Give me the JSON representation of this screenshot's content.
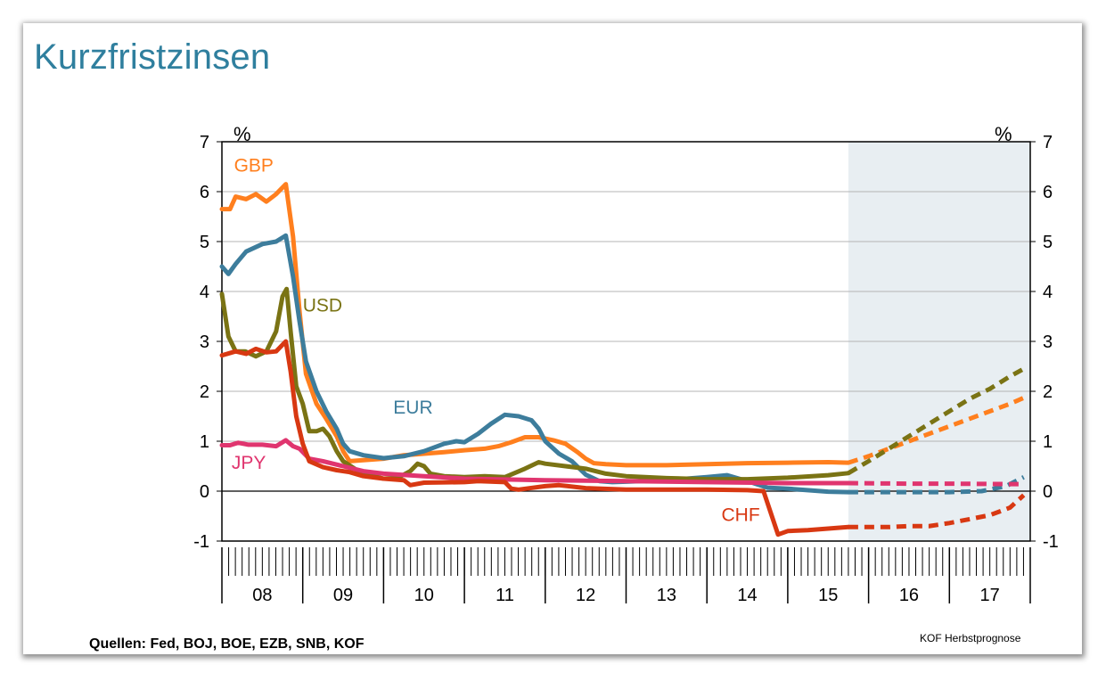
{
  "title": "Kurzfristzinsen",
  "sources": "Quellen: Fed, BOJ, BOE, EZB, SNB, KOF",
  "credit": "KOF Herbstprognose",
  "chart_data": {
    "type": "line",
    "title": "Kurzfristzinsen",
    "ylabel_left": "%",
    "ylabel_right": "%",
    "ylim": [
      -1,
      7
    ],
    "yticks": [
      -1,
      0,
      1,
      2,
      3,
      4,
      5,
      6,
      7
    ],
    "xlim": [
      2008,
      2018
    ],
    "x_tick_labels": [
      "08",
      "09",
      "10",
      "11",
      "12",
      "13",
      "14",
      "15",
      "16",
      "17"
    ],
    "grid": true,
    "forecast_start": 2015.75,
    "forecast_shading": "#e8eef2",
    "series": [
      {
        "name": "GBP",
        "color": "#ff7f1e",
        "label_pos": [
          2008.15,
          6.4
        ],
        "actual": [
          [
            2008.0,
            5.65
          ],
          [
            2008.1,
            5.65
          ],
          [
            2008.17,
            5.9
          ],
          [
            2008.3,
            5.85
          ],
          [
            2008.42,
            5.95
          ],
          [
            2008.55,
            5.8
          ],
          [
            2008.67,
            5.95
          ],
          [
            2008.79,
            6.15
          ],
          [
            2008.88,
            5.1
          ],
          [
            2008.96,
            3.6
          ],
          [
            2009.04,
            2.35
          ],
          [
            2009.17,
            1.75
          ],
          [
            2009.29,
            1.45
          ],
          [
            2009.42,
            1.1
          ],
          [
            2009.5,
            0.8
          ],
          [
            2009.58,
            0.6
          ],
          [
            2009.75,
            0.62
          ],
          [
            2010.0,
            0.65
          ],
          [
            2010.25,
            0.72
          ],
          [
            2010.5,
            0.75
          ],
          [
            2010.75,
            0.78
          ],
          [
            2011.0,
            0.82
          ],
          [
            2011.25,
            0.85
          ],
          [
            2011.42,
            0.9
          ],
          [
            2011.58,
            0.98
          ],
          [
            2011.75,
            1.08
          ],
          [
            2011.92,
            1.08
          ],
          [
            2012.1,
            1.02
          ],
          [
            2012.25,
            0.95
          ],
          [
            2012.4,
            0.78
          ],
          [
            2012.5,
            0.65
          ],
          [
            2012.6,
            0.56
          ],
          [
            2012.75,
            0.54
          ],
          [
            2013.0,
            0.52
          ],
          [
            2013.5,
            0.52
          ],
          [
            2014.0,
            0.54
          ],
          [
            2014.5,
            0.56
          ],
          [
            2015.0,
            0.57
          ],
          [
            2015.5,
            0.58
          ],
          [
            2015.75,
            0.57
          ]
        ],
        "forecast": [
          [
            2015.75,
            0.57
          ],
          [
            2016.0,
            0.7
          ],
          [
            2016.25,
            0.85
          ],
          [
            2016.5,
            1.0
          ],
          [
            2016.75,
            1.15
          ],
          [
            2017.0,
            1.3
          ],
          [
            2017.25,
            1.45
          ],
          [
            2017.5,
            1.6
          ],
          [
            2017.75,
            1.75
          ],
          [
            2017.92,
            1.87
          ]
        ]
      },
      {
        "name": "EUR",
        "color": "#3d7d9c",
        "label_pos": [
          2010.12,
          1.55
        ],
        "actual": [
          [
            2008.0,
            4.5
          ],
          [
            2008.08,
            4.35
          ],
          [
            2008.17,
            4.55
          ],
          [
            2008.3,
            4.8
          ],
          [
            2008.5,
            4.95
          ],
          [
            2008.67,
            5.0
          ],
          [
            2008.79,
            5.12
          ],
          [
            2008.88,
            4.3
          ],
          [
            2008.96,
            3.4
          ],
          [
            2009.04,
            2.6
          ],
          [
            2009.17,
            2.0
          ],
          [
            2009.29,
            1.6
          ],
          [
            2009.42,
            1.25
          ],
          [
            2009.5,
            0.95
          ],
          [
            2009.58,
            0.8
          ],
          [
            2009.75,
            0.72
          ],
          [
            2010.0,
            0.66
          ],
          [
            2010.25,
            0.7
          ],
          [
            2010.5,
            0.8
          ],
          [
            2010.75,
            0.95
          ],
          [
            2010.9,
            1.0
          ],
          [
            2011.0,
            0.98
          ],
          [
            2011.17,
            1.15
          ],
          [
            2011.33,
            1.35
          ],
          [
            2011.5,
            1.53
          ],
          [
            2011.67,
            1.5
          ],
          [
            2011.83,
            1.42
          ],
          [
            2011.92,
            1.25
          ],
          [
            2012.0,
            1.0
          ],
          [
            2012.17,
            0.75
          ],
          [
            2012.33,
            0.6
          ],
          [
            2012.5,
            0.33
          ],
          [
            2012.67,
            0.2
          ],
          [
            2012.83,
            0.18
          ],
          [
            2013.0,
            0.19
          ],
          [
            2013.5,
            0.22
          ],
          [
            2014.0,
            0.28
          ],
          [
            2014.25,
            0.32
          ],
          [
            2014.5,
            0.2
          ],
          [
            2014.75,
            0.07
          ],
          [
            2015.0,
            0.05
          ],
          [
            2015.5,
            -0.01
          ],
          [
            2015.75,
            -0.02
          ]
        ],
        "forecast": [
          [
            2015.75,
            -0.02
          ],
          [
            2016.0,
            -0.02
          ],
          [
            2016.5,
            -0.02
          ],
          [
            2017.0,
            -0.02
          ],
          [
            2017.4,
            0.0
          ],
          [
            2017.7,
            0.1
          ],
          [
            2017.92,
            0.28
          ]
        ]
      },
      {
        "name": "USD",
        "color": "#7a7314",
        "label_pos": [
          2009.0,
          3.6
        ],
        "actual": [
          [
            2008.0,
            3.95
          ],
          [
            2008.08,
            3.1
          ],
          [
            2008.17,
            2.8
          ],
          [
            2008.29,
            2.8
          ],
          [
            2008.42,
            2.7
          ],
          [
            2008.55,
            2.8
          ],
          [
            2008.67,
            3.2
          ],
          [
            2008.75,
            3.9
          ],
          [
            2008.8,
            4.05
          ],
          [
            2008.85,
            3.2
          ],
          [
            2008.92,
            2.1
          ],
          [
            2009.0,
            1.75
          ],
          [
            2009.08,
            1.2
          ],
          [
            2009.17,
            1.2
          ],
          [
            2009.25,
            1.25
          ],
          [
            2009.33,
            1.1
          ],
          [
            2009.42,
            0.8
          ],
          [
            2009.5,
            0.6
          ],
          [
            2009.67,
            0.42
          ],
          [
            2009.83,
            0.32
          ],
          [
            2010.0,
            0.25
          ],
          [
            2010.17,
            0.26
          ],
          [
            2010.33,
            0.4
          ],
          [
            2010.42,
            0.55
          ],
          [
            2010.5,
            0.5
          ],
          [
            2010.58,
            0.35
          ],
          [
            2010.75,
            0.3
          ],
          [
            2011.0,
            0.28
          ],
          [
            2011.25,
            0.3
          ],
          [
            2011.5,
            0.28
          ],
          [
            2011.75,
            0.45
          ],
          [
            2011.92,
            0.58
          ],
          [
            2012.0,
            0.55
          ],
          [
            2012.25,
            0.5
          ],
          [
            2012.5,
            0.45
          ],
          [
            2012.75,
            0.35
          ],
          [
            2013.0,
            0.3
          ],
          [
            2013.5,
            0.26
          ],
          [
            2014.0,
            0.24
          ],
          [
            2014.5,
            0.24
          ],
          [
            2015.0,
            0.27
          ],
          [
            2015.5,
            0.32
          ],
          [
            2015.75,
            0.36
          ]
        ],
        "forecast": [
          [
            2015.75,
            0.36
          ],
          [
            2016.0,
            0.6
          ],
          [
            2016.25,
            0.85
          ],
          [
            2016.5,
            1.1
          ],
          [
            2016.75,
            1.35
          ],
          [
            2017.0,
            1.6
          ],
          [
            2017.25,
            1.85
          ],
          [
            2017.5,
            2.05
          ],
          [
            2017.75,
            2.3
          ],
          [
            2017.92,
            2.45
          ]
        ]
      },
      {
        "name": "JPY",
        "color": "#e0356f",
        "label_pos": [
          2008.12,
          0.45
        ],
        "actual": [
          [
            2008.0,
            0.92
          ],
          [
            2008.1,
            0.92
          ],
          [
            2008.2,
            0.97
          ],
          [
            2008.33,
            0.93
          ],
          [
            2008.5,
            0.93
          ],
          [
            2008.67,
            0.9
          ],
          [
            2008.79,
            1.02
          ],
          [
            2008.88,
            0.9
          ],
          [
            2008.96,
            0.85
          ],
          [
            2009.08,
            0.65
          ],
          [
            2009.25,
            0.6
          ],
          [
            2009.5,
            0.5
          ],
          [
            2009.75,
            0.4
          ],
          [
            2010.0,
            0.35
          ],
          [
            2010.5,
            0.3
          ],
          [
            2011.0,
            0.25
          ],
          [
            2012.0,
            0.22
          ],
          [
            2013.0,
            0.2
          ],
          [
            2014.0,
            0.18
          ],
          [
            2015.0,
            0.16
          ],
          [
            2015.75,
            0.16
          ]
        ],
        "forecast": [
          [
            2015.75,
            0.16
          ],
          [
            2016.5,
            0.15
          ],
          [
            2017.0,
            0.15
          ],
          [
            2017.92,
            0.14
          ]
        ]
      },
      {
        "name": "CHF",
        "color": "#d83812",
        "label_pos": [
          2014.18,
          -0.6
        ],
        "actual": [
          [
            2008.0,
            2.72
          ],
          [
            2008.17,
            2.8
          ],
          [
            2008.3,
            2.75
          ],
          [
            2008.42,
            2.85
          ],
          [
            2008.55,
            2.78
          ],
          [
            2008.67,
            2.8
          ],
          [
            2008.79,
            3.0
          ],
          [
            2008.85,
            2.4
          ],
          [
            2008.92,
            1.5
          ],
          [
            2009.0,
            0.95
          ],
          [
            2009.08,
            0.6
          ],
          [
            2009.25,
            0.48
          ],
          [
            2009.42,
            0.42
          ],
          [
            2009.58,
            0.38
          ],
          [
            2009.75,
            0.3
          ],
          [
            2010.0,
            0.25
          ],
          [
            2010.25,
            0.22
          ],
          [
            2010.33,
            0.12
          ],
          [
            2010.5,
            0.17
          ],
          [
            2011.0,
            0.18
          ],
          [
            2011.17,
            0.2
          ],
          [
            2011.5,
            0.18
          ],
          [
            2011.58,
            0.05
          ],
          [
            2011.67,
            0.03
          ],
          [
            2012.0,
            0.1
          ],
          [
            2012.17,
            0.12
          ],
          [
            2012.5,
            0.06
          ],
          [
            2013.0,
            0.03
          ],
          [
            2014.0,
            0.03
          ],
          [
            2014.5,
            0.02
          ],
          [
            2014.7,
            0.0
          ],
          [
            2014.88,
            -0.87
          ],
          [
            2015.0,
            -0.8
          ],
          [
            2015.25,
            -0.78
          ],
          [
            2015.5,
            -0.75
          ],
          [
            2015.75,
            -0.72
          ]
        ],
        "forecast": [
          [
            2015.75,
            -0.72
          ],
          [
            2016.0,
            -0.72
          ],
          [
            2016.25,
            -0.72
          ],
          [
            2016.5,
            -0.7
          ],
          [
            2016.75,
            -0.7
          ],
          [
            2017.0,
            -0.64
          ],
          [
            2017.25,
            -0.56
          ],
          [
            2017.5,
            -0.48
          ],
          [
            2017.75,
            -0.33
          ],
          [
            2017.92,
            -0.08
          ]
        ]
      }
    ]
  }
}
